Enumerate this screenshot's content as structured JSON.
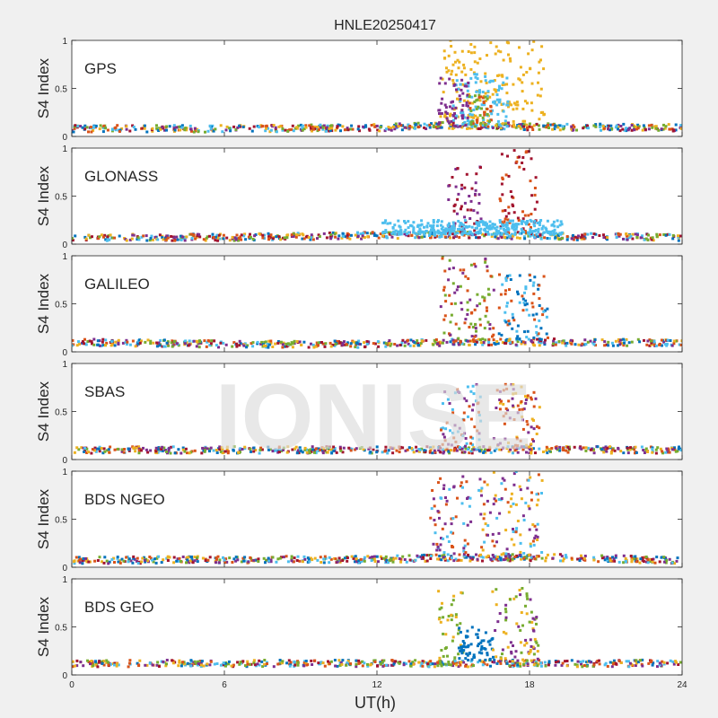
{
  "chart_data": {
    "type": "scatter",
    "title": "HNLE20250417",
    "xlabel": "UT(h)",
    "ylabel": "S4 Index",
    "xlim": [
      0,
      24
    ],
    "xticks": [
      0,
      6,
      12,
      18,
      24
    ],
    "ylim": [
      0,
      1
    ],
    "yticks": [
      0,
      0.5,
      1
    ],
    "ytick_labels": [
      "0",
      "0.5",
      "1"
    ],
    "grid": false,
    "watermark": "IONISE",
    "series_colors": [
      "#0072bd",
      "#d95319",
      "#edb120",
      "#7e2f8e",
      "#77ac30",
      "#4dbeee",
      "#a2142f"
    ],
    "panels": [
      {
        "name": "GPS",
        "background": [
          {
            "x": 0,
            "y": 0.08
          },
          {
            "x": 6,
            "y": 0.08
          },
          {
            "x": 12,
            "y": 0.09
          },
          {
            "x": 15,
            "y": 0.12
          },
          {
            "x": 18,
            "y": 0.1
          },
          {
            "x": 24,
            "y": 0.09
          }
        ],
        "bursts": [
          {
            "x_start": 14.5,
            "x_end": 18.6,
            "y_low": 0.08,
            "y_high": 1.0,
            "series": [
              2
            ]
          },
          {
            "x_start": 15.0,
            "x_end": 17.2,
            "y_low": 0.1,
            "y_high": 0.65,
            "series": [
              5
            ]
          },
          {
            "x_start": 14.4,
            "x_end": 15.6,
            "y_low": 0.1,
            "y_high": 0.62,
            "series": [
              3
            ]
          },
          {
            "x_start": 15.6,
            "x_end": 16.5,
            "y_low": 0.1,
            "y_high": 0.45,
            "series": [
              1,
              4
            ]
          }
        ]
      },
      {
        "name": "GLONASS",
        "background": [
          {
            "x": 0,
            "y": 0.07
          },
          {
            "x": 6,
            "y": 0.07
          },
          {
            "x": 12,
            "y": 0.09
          },
          {
            "x": 15,
            "y": 0.1
          },
          {
            "x": 19,
            "y": 0.08
          },
          {
            "x": 24,
            "y": 0.07
          }
        ],
        "bursts": [
          {
            "x_start": 16.8,
            "x_end": 18.3,
            "y_low": 0.1,
            "y_high": 0.98,
            "series": [
              6,
              1
            ]
          },
          {
            "x_start": 14.8,
            "x_end": 16.1,
            "y_low": 0.1,
            "y_high": 0.82,
            "series": [
              6,
              3
            ]
          },
          {
            "x_start": 12.2,
            "x_end": 19.3,
            "y_low": 0.1,
            "y_high": 0.25,
            "series": [
              5
            ]
          }
        ]
      },
      {
        "name": "GALILEO",
        "background": [
          {
            "x": 0,
            "y": 0.1
          },
          {
            "x": 6,
            "y": 0.08
          },
          {
            "x": 12,
            "y": 0.08
          },
          {
            "x": 15,
            "y": 0.1
          },
          {
            "x": 19,
            "y": 0.1
          },
          {
            "x": 24,
            "y": 0.09
          }
        ],
        "bursts": [
          {
            "x_start": 14.5,
            "x_end": 16.6,
            "y_low": 0.1,
            "y_high": 1.0,
            "series": [
              1,
              4,
              3
            ]
          },
          {
            "x_start": 16.8,
            "x_end": 18.8,
            "y_low": 0.1,
            "y_high": 0.82,
            "series": [
              5,
              0,
              1
            ]
          }
        ]
      },
      {
        "name": "SBAS",
        "background": [
          {
            "x": 0,
            "y": 0.1
          },
          {
            "x": 6,
            "y": 0.1
          },
          {
            "x": 12,
            "y": 0.1
          },
          {
            "x": 18,
            "y": 0.1
          },
          {
            "x": 24,
            "y": 0.1
          }
        ],
        "bursts": [
          {
            "x_start": 14.5,
            "x_end": 16.1,
            "y_low": 0.1,
            "y_high": 0.78,
            "series": [
              1,
              5,
              3
            ]
          },
          {
            "x_start": 16.6,
            "x_end": 18.4,
            "y_low": 0.1,
            "y_high": 0.8,
            "series": [
              2,
              1,
              3
            ]
          }
        ]
      },
      {
        "name": "BDS NGEO",
        "background": [
          {
            "x": 0,
            "y": 0.07
          },
          {
            "x": 6,
            "y": 0.08
          },
          {
            "x": 12,
            "y": 0.08
          },
          {
            "x": 15,
            "y": 0.1
          },
          {
            "x": 19,
            "y": 0.1
          },
          {
            "x": 24,
            "y": 0.07
          }
        ],
        "bursts": [
          {
            "x_start": 14.1,
            "x_end": 15.7,
            "y_low": 0.1,
            "y_high": 0.95,
            "series": [
              3,
              1,
              5
            ]
          },
          {
            "x_start": 16.0,
            "x_end": 18.5,
            "y_low": 0.1,
            "y_high": 1.0,
            "series": [
              1,
              2,
              5,
              3
            ]
          }
        ]
      },
      {
        "name": "BDS GEO",
        "background": [
          {
            "x": 0,
            "y": 0.12
          },
          {
            "x": 6,
            "y": 0.12
          },
          {
            "x": 12,
            "y": 0.12
          },
          {
            "x": 18,
            "y": 0.12
          },
          {
            "x": 24,
            "y": 0.12
          }
        ],
        "bursts": [
          {
            "x_start": 14.4,
            "x_end": 15.4,
            "y_low": 0.1,
            "y_high": 0.9,
            "series": [
              4,
              2
            ]
          },
          {
            "x_start": 15.2,
            "x_end": 16.6,
            "y_low": 0.15,
            "y_high": 0.5,
            "series": [
              0
            ]
          },
          {
            "x_start": 16.5,
            "x_end": 18.4,
            "y_low": 0.1,
            "y_high": 0.95,
            "series": [
              2,
              4,
              3
            ]
          }
        ]
      }
    ]
  }
}
